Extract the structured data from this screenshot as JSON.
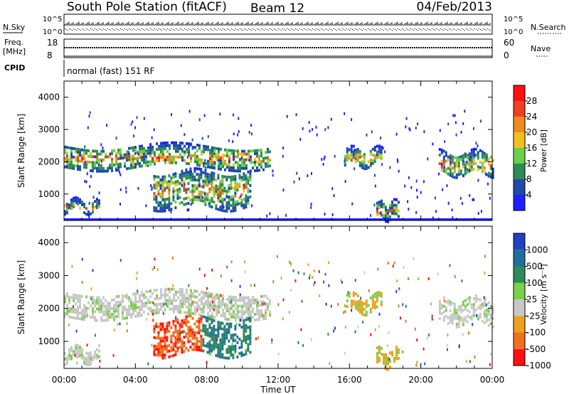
{
  "header": {
    "station": "South Pole Station (fitACF)",
    "beam": "Beam 12",
    "date": "04/Feb/2013"
  },
  "panels": {
    "nsky": {
      "label": "N.Sky",
      "ticks": [
        "10^5",
        "10^0"
      ]
    },
    "nsearch": {
      "label": "N.Search",
      "ticks": [
        "10^5",
        "10^0"
      ]
    },
    "freq": {
      "label_line1": "Freq.",
      "label_line2": "[MHz]",
      "ticks": [
        "18",
        "8"
      ]
    },
    "nave": {
      "label": "Nave",
      "ticks": [
        "60",
        "0"
      ]
    },
    "cpid": {
      "label": "CPID",
      "value": "normal (fast) 151 RF"
    }
  },
  "legend_power": {
    "label": "Power [dB]",
    "ticks": [
      "28",
      "24",
      "20",
      "16",
      "12",
      "8",
      "4"
    ]
  },
  "legend_velocity": {
    "label": "Velocity [m s⁻¹]",
    "ticks": [
      "1000",
      "500",
      "100",
      "25",
      "-25",
      "-100",
      "-500",
      "-1000"
    ]
  },
  "colors": {
    "power": [
      "#1f1fff",
      "#1f4aa8",
      "#2e8b57",
      "#6ad04a",
      "#f0c020",
      "#f08a20",
      "#f04020",
      "#ff1010"
    ],
    "velocity": [
      "#2040c0",
      "#1f6f9a",
      "#2e8b57",
      "#7cd04a",
      "#c8c8c8",
      "#f0a020",
      "#f07020",
      "#ff1010"
    ]
  },
  "chart_data": {
    "type": "heatmap",
    "x_tick_labels": [
      "00:00",
      "04:00",
      "08:00",
      "12:00",
      "16:00",
      "20:00",
      "00:00"
    ],
    "xlabel": "Time UT",
    "xlim_hours": [
      0,
      24
    ],
    "ylabel": "Slant Range [km]",
    "y_ticks": [
      1000,
      2000,
      3000,
      4000
    ],
    "ylim_km": [
      180,
      4500
    ],
    "features": [
      {
        "name": "upper band",
        "t_start": 0.0,
        "t_end": 11.5,
        "range_km": [
          1800,
          2500
        ]
      },
      {
        "name": "lower band",
        "t_start": 5.0,
        "t_end": 10.5,
        "range_km": [
          600,
          1700
        ]
      },
      {
        "name": "near range",
        "t_start": 0.0,
        "t_end": 2.0,
        "range_km": [
          450,
          800
        ]
      },
      {
        "name": "evening band",
        "t_start": 15.7,
        "t_end": 17.8,
        "range_km": [
          1900,
          2400
        ]
      },
      {
        "name": "late patch",
        "t_start": 17.5,
        "t_end": 18.8,
        "range_km": [
          300,
          750
        ]
      },
      {
        "name": "dawn band",
        "t_start": 21.0,
        "t_end": 24.0,
        "range_km": [
          1600,
          2300
        ]
      }
    ]
  }
}
